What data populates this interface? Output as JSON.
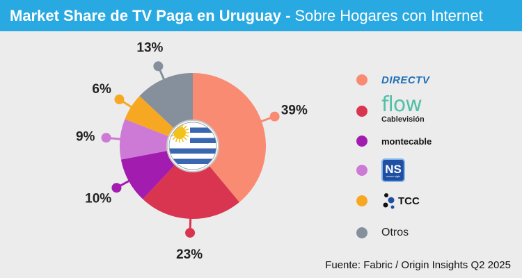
{
  "header": {
    "title_bold": "Market Share de TV Paga en Uruguay -",
    "title_light": "Sobre Hogares con Internet"
  },
  "chart_data": {
    "type": "pie",
    "title": "Market Share de TV Paga en Uruguay - Sobre Hogares con Internet",
    "slices": [
      {
        "name": "DIRECTV",
        "value": 39,
        "label": "39%",
        "color": "#f98b72"
      },
      {
        "name": "flow Cablevisión",
        "value": 23,
        "label": "23%",
        "color": "#d93550"
      },
      {
        "name": "montecable",
        "value": 10,
        "label": "10%",
        "color": "#a21caf"
      },
      {
        "name": "NS nuevo siglo",
        "value": 9,
        "label": "9%",
        "color": "#cc7ad6"
      },
      {
        "name": "TCC",
        "value": 6,
        "label": "6%",
        "color": "#f7a823"
      },
      {
        "name": "Otros",
        "value": 13,
        "label": "13%",
        "color": "#868f9c"
      }
    ]
  },
  "legend": {
    "directv": "DIRECTV",
    "flow": "flow",
    "flow_sub": "Cablevisión",
    "montecable": "montecable",
    "ns": "NS",
    "ns_sub": "nuevo siglo",
    "tcc": "TCC",
    "otros": "Otros"
  },
  "icons": [
    "uruguay-flag-icon",
    "tcc-dots-icon"
  ],
  "source": "Fuente: Fabric / Origin Insights Q2 2025"
}
